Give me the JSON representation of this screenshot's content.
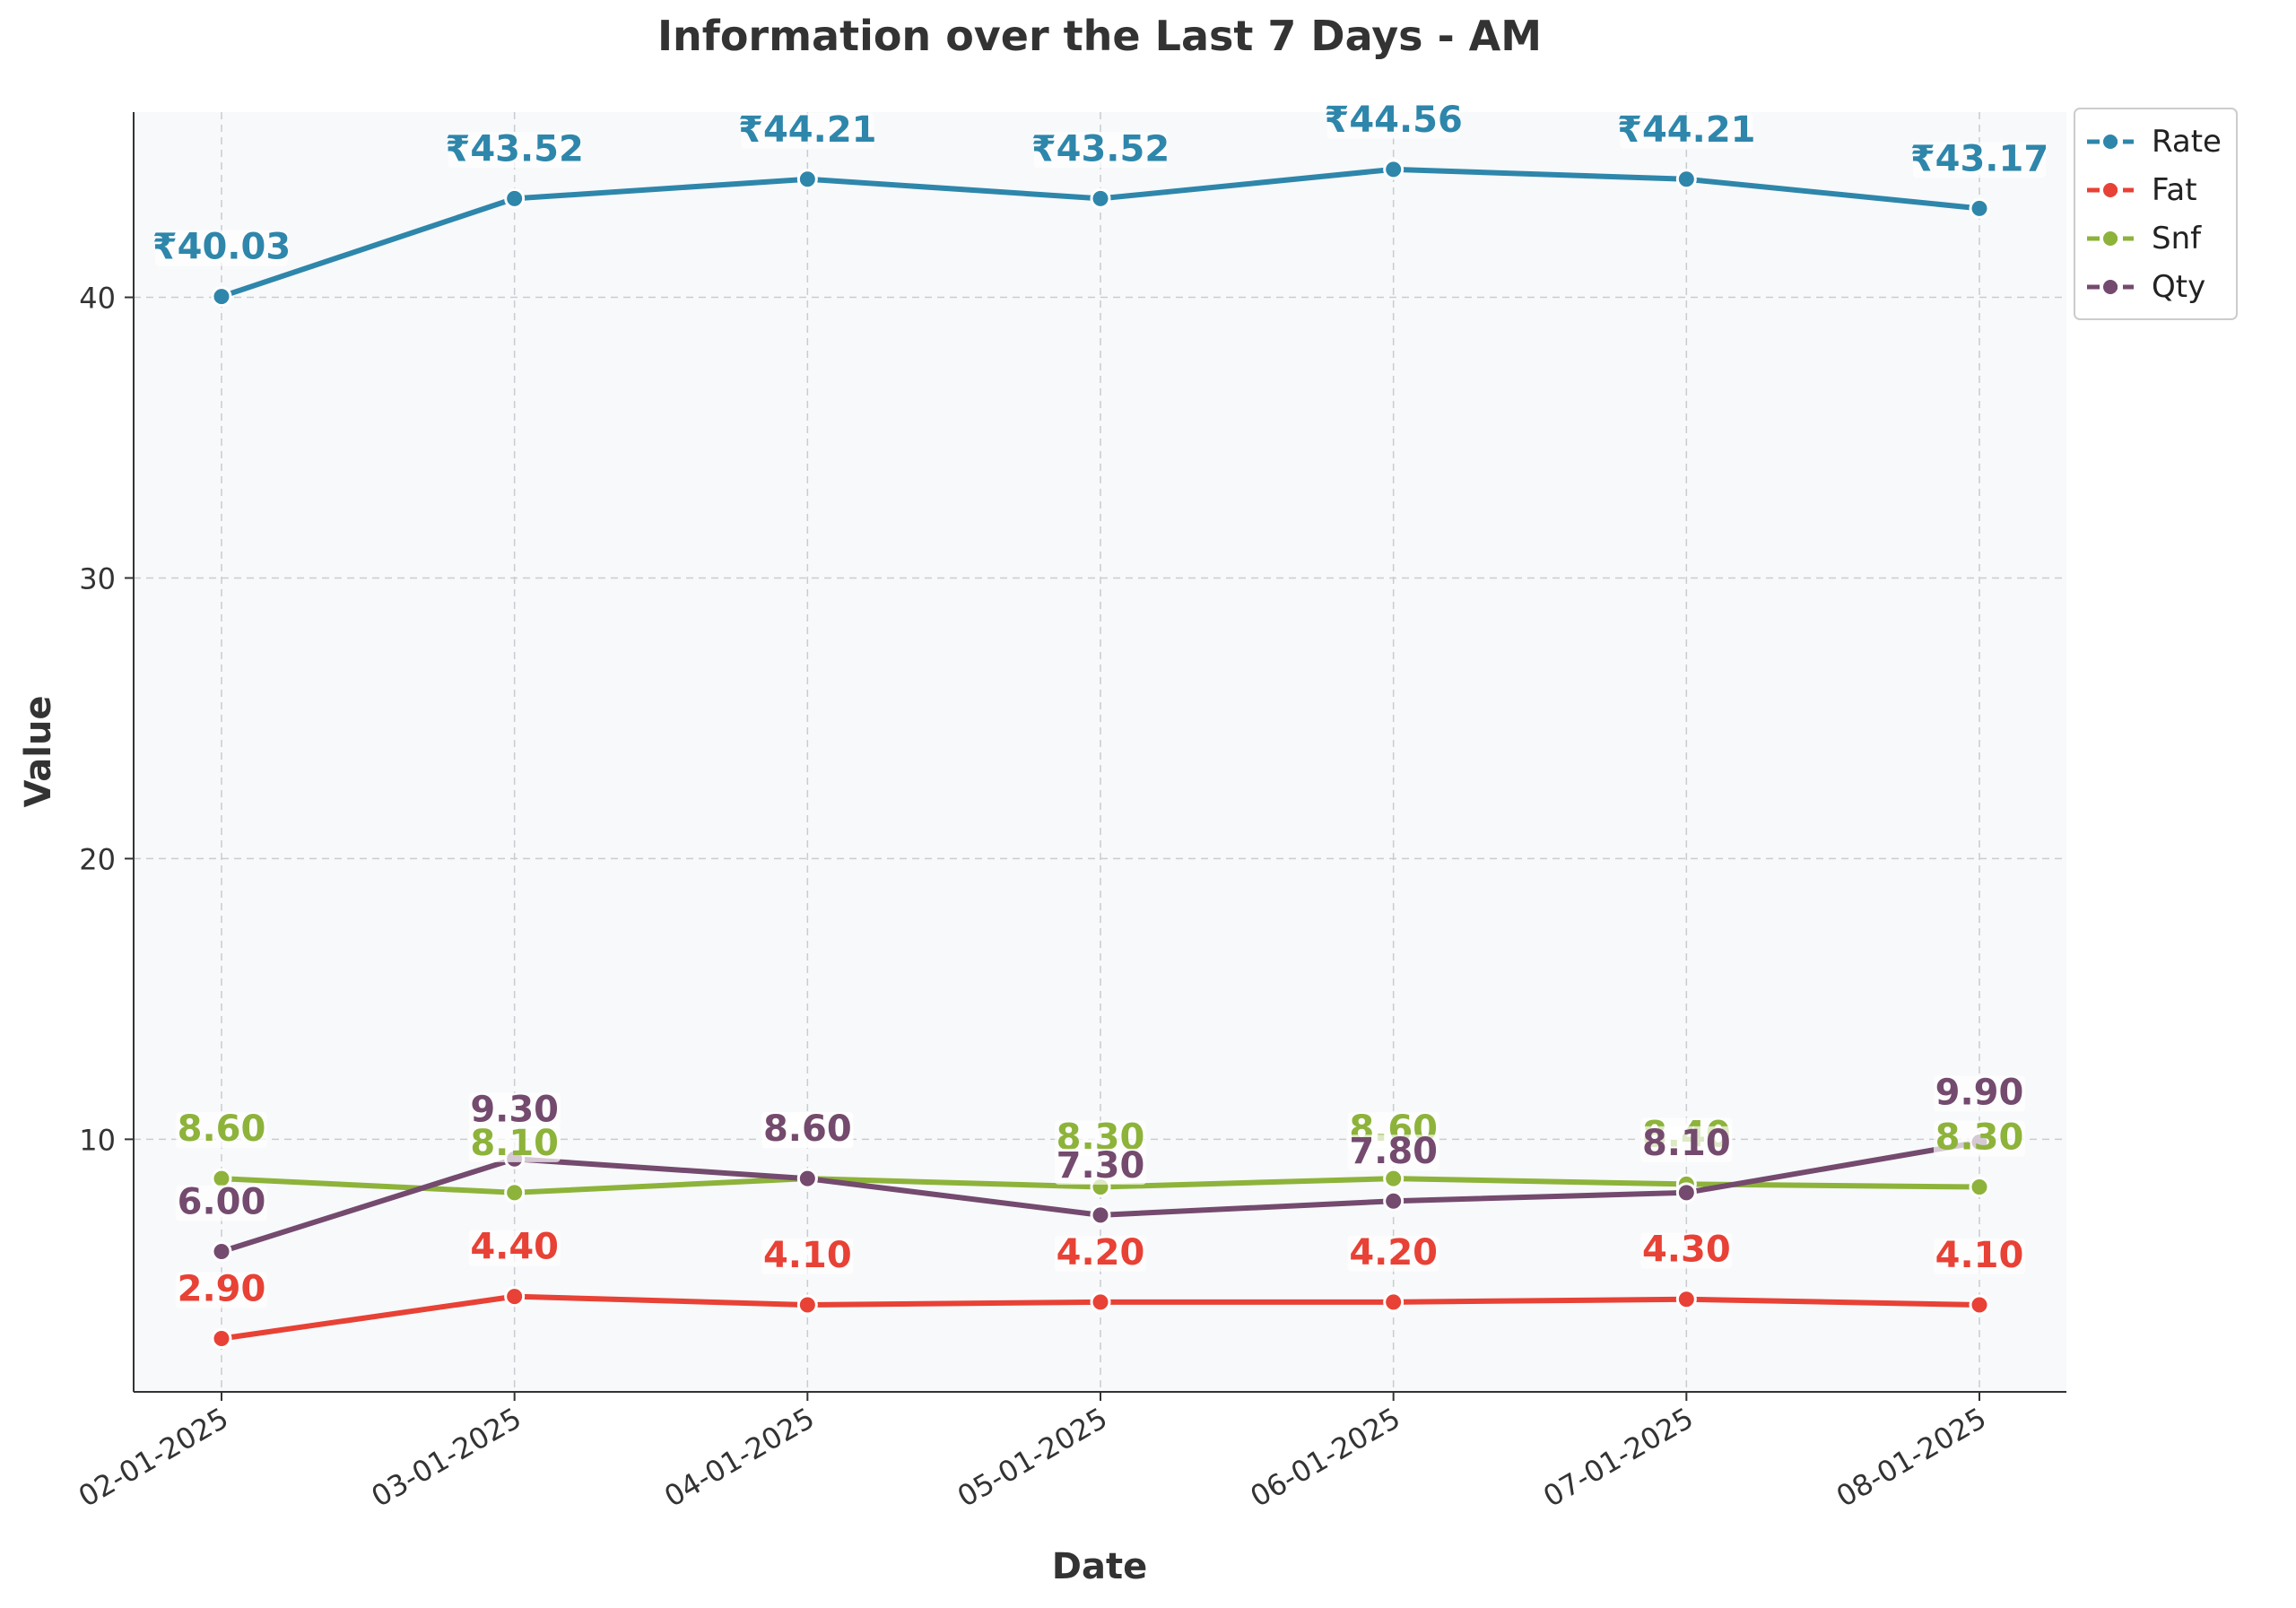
{
  "chart_data": {
    "type": "line",
    "title": "Information over the Last 7 Days - AM",
    "xlabel": "Date",
    "ylabel": "Value",
    "categories": [
      "02-01-2025",
      "03-01-2025",
      "04-01-2025",
      "05-01-2025",
      "06-01-2025",
      "07-01-2025",
      "08-01-2025"
    ],
    "ylim": [
      1,
      46.6
    ],
    "yticks": [
      10,
      20,
      30,
      40
    ],
    "grid": true,
    "legend_position": "upper-right-outside",
    "series": [
      {
        "name": "Rate",
        "color": "#2e86ab",
        "values": [
          40.03,
          43.52,
          44.21,
          43.52,
          44.56,
          44.21,
          43.17
        ],
        "labels": [
          "₹40.03",
          "₹43.52",
          "₹44.21",
          "₹43.52",
          "₹44.56",
          "₹44.21",
          "₹43.17"
        ]
      },
      {
        "name": "Fat",
        "color": "#e84135",
        "values": [
          2.9,
          4.4,
          4.1,
          4.2,
          4.2,
          4.3,
          4.1
        ],
        "labels": [
          "2.90",
          "4.40",
          "4.10",
          "4.20",
          "4.20",
          "4.30",
          "4.10"
        ]
      },
      {
        "name": "Snf",
        "color": "#8db33a",
        "values": [
          8.6,
          8.1,
          8.6,
          8.3,
          8.6,
          8.4,
          8.3
        ],
        "labels": [
          "8.60",
          "8.10",
          "8.60",
          "8.30",
          "8.60",
          "8.40",
          "8.30"
        ]
      },
      {
        "name": "Qty",
        "color": "#744a6e",
        "values": [
          6.0,
          9.3,
          8.6,
          7.3,
          7.8,
          8.1,
          9.9
        ],
        "labels": [
          "6.00",
          "9.30",
          "8.60",
          "7.30",
          "7.80",
          "8.10",
          "9.90"
        ]
      }
    ]
  }
}
